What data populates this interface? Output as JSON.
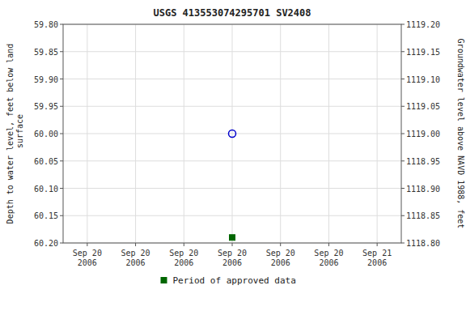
{
  "chart_data": {
    "type": "scatter",
    "title": "USGS 413553074295701 SV2408",
    "ylabel": "Depth to water level, feet below land\n surface",
    "y2label": "Groundwater level above NAVD 1988, feet",
    "categories": [
      "Sep 20\n2006",
      "Sep 20\n2006",
      "Sep 20\n2006",
      "Sep 20\n2006",
      "Sep 20\n2006",
      "Sep 20\n2006",
      "Sep 21\n2006"
    ],
    "series": [
      {
        "color": "#0000cc",
        "marker": "open-circle",
        "values": [
          null,
          null,
          null,
          60.0,
          null,
          null,
          null
        ]
      },
      {
        "name": "Period of approved data",
        "color": "#006600",
        "marker": "square",
        "values": [
          null,
          null,
          null,
          60.19,
          null,
          null,
          null
        ]
      }
    ],
    "ylim": [
      60.2,
      59.8
    ],
    "yticks": [
      {
        "value": 59.8,
        "label": "59.80"
      },
      59.85,
      {
        "value": 59.9,
        "label": "59.90"
      },
      59.95,
      {
        "value": 60.0,
        "label": "60.00"
      },
      60.05,
      {
        "value": 60.1,
        "label": "60.10"
      },
      60.15,
      {
        "value": 60.2,
        "label": "60.20"
      }
    ],
    "y2lim": [
      1118.8,
      1119.2
    ],
    "y2ticks": [
      {
        "value": 1119.2,
        "label": "1119.20"
      },
      1119.15,
      {
        "value": 1119.1,
        "label": "1119.10"
      },
      1119.05,
      {
        "value": 1119.0,
        "label": "1119.00"
      },
      1118.95,
      {
        "value": 1118.9,
        "label": "1118.90"
      },
      1118.85,
      {
        "value": 1118.8,
        "label": "1118.80"
      }
    ],
    "grid": true,
    "legend": "bottom"
  }
}
